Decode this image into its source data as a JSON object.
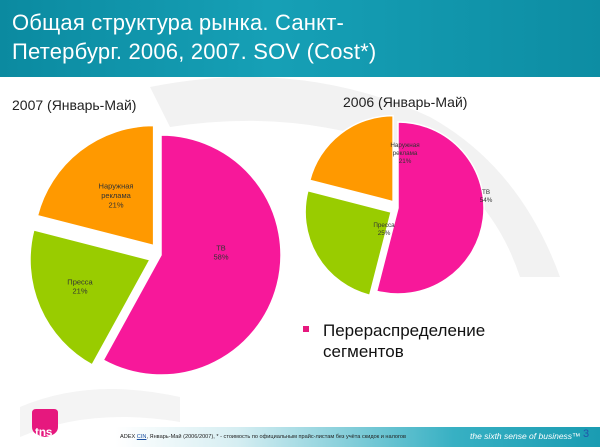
{
  "header": {
    "title_line1": "Общая структура рынка. Санкт-",
    "title_line2": "Петербург. 2006, 2007. SOV (Cost*)"
  },
  "chart_data": [
    {
      "type": "pie",
      "title": "2007 (Январь-Май)",
      "slices": [
        {
          "label": "ТВ",
          "value": 58,
          "value_label": "58%",
          "color": "#f7189a"
        },
        {
          "label": "Пресса",
          "value": 21,
          "value_label": "21%",
          "color": "#99cc00"
        },
        {
          "label": "Наружная реклама",
          "value": 21,
          "value_label": "21%",
          "color": "#ff9900"
        }
      ]
    },
    {
      "type": "pie",
      "title": "2006 (Январь-Май)",
      "slices": [
        {
          "label": "ТВ",
          "value": 54,
          "value_label": "54%",
          "color": "#f7189a"
        },
        {
          "label": "Пресса",
          "value": 25,
          "value_label": "25%",
          "color": "#99cc00"
        },
        {
          "label": "Наружная реклама",
          "value": 21,
          "value_label": "21%",
          "color": "#ff9900"
        }
      ]
    }
  ],
  "legend": {
    "line1": "Перераспределение",
    "line2": "сегментов"
  },
  "footer": {
    "source_prefix": "ADEX ",
    "source_link": "CIN",
    "source_rest": ", Январь-Май (2006/2007), * - стоимость по официальным прайс-листам без учёта скидок и налогов",
    "tagline": "the sixth sense of business™",
    "page_number": "3",
    "logo_text": "tns"
  },
  "colors": {
    "header": "#0b8aa0",
    "tv": "#f7189a",
    "press": "#99cc00",
    "outdoor": "#ff9900",
    "bullet": "#e6187e"
  }
}
